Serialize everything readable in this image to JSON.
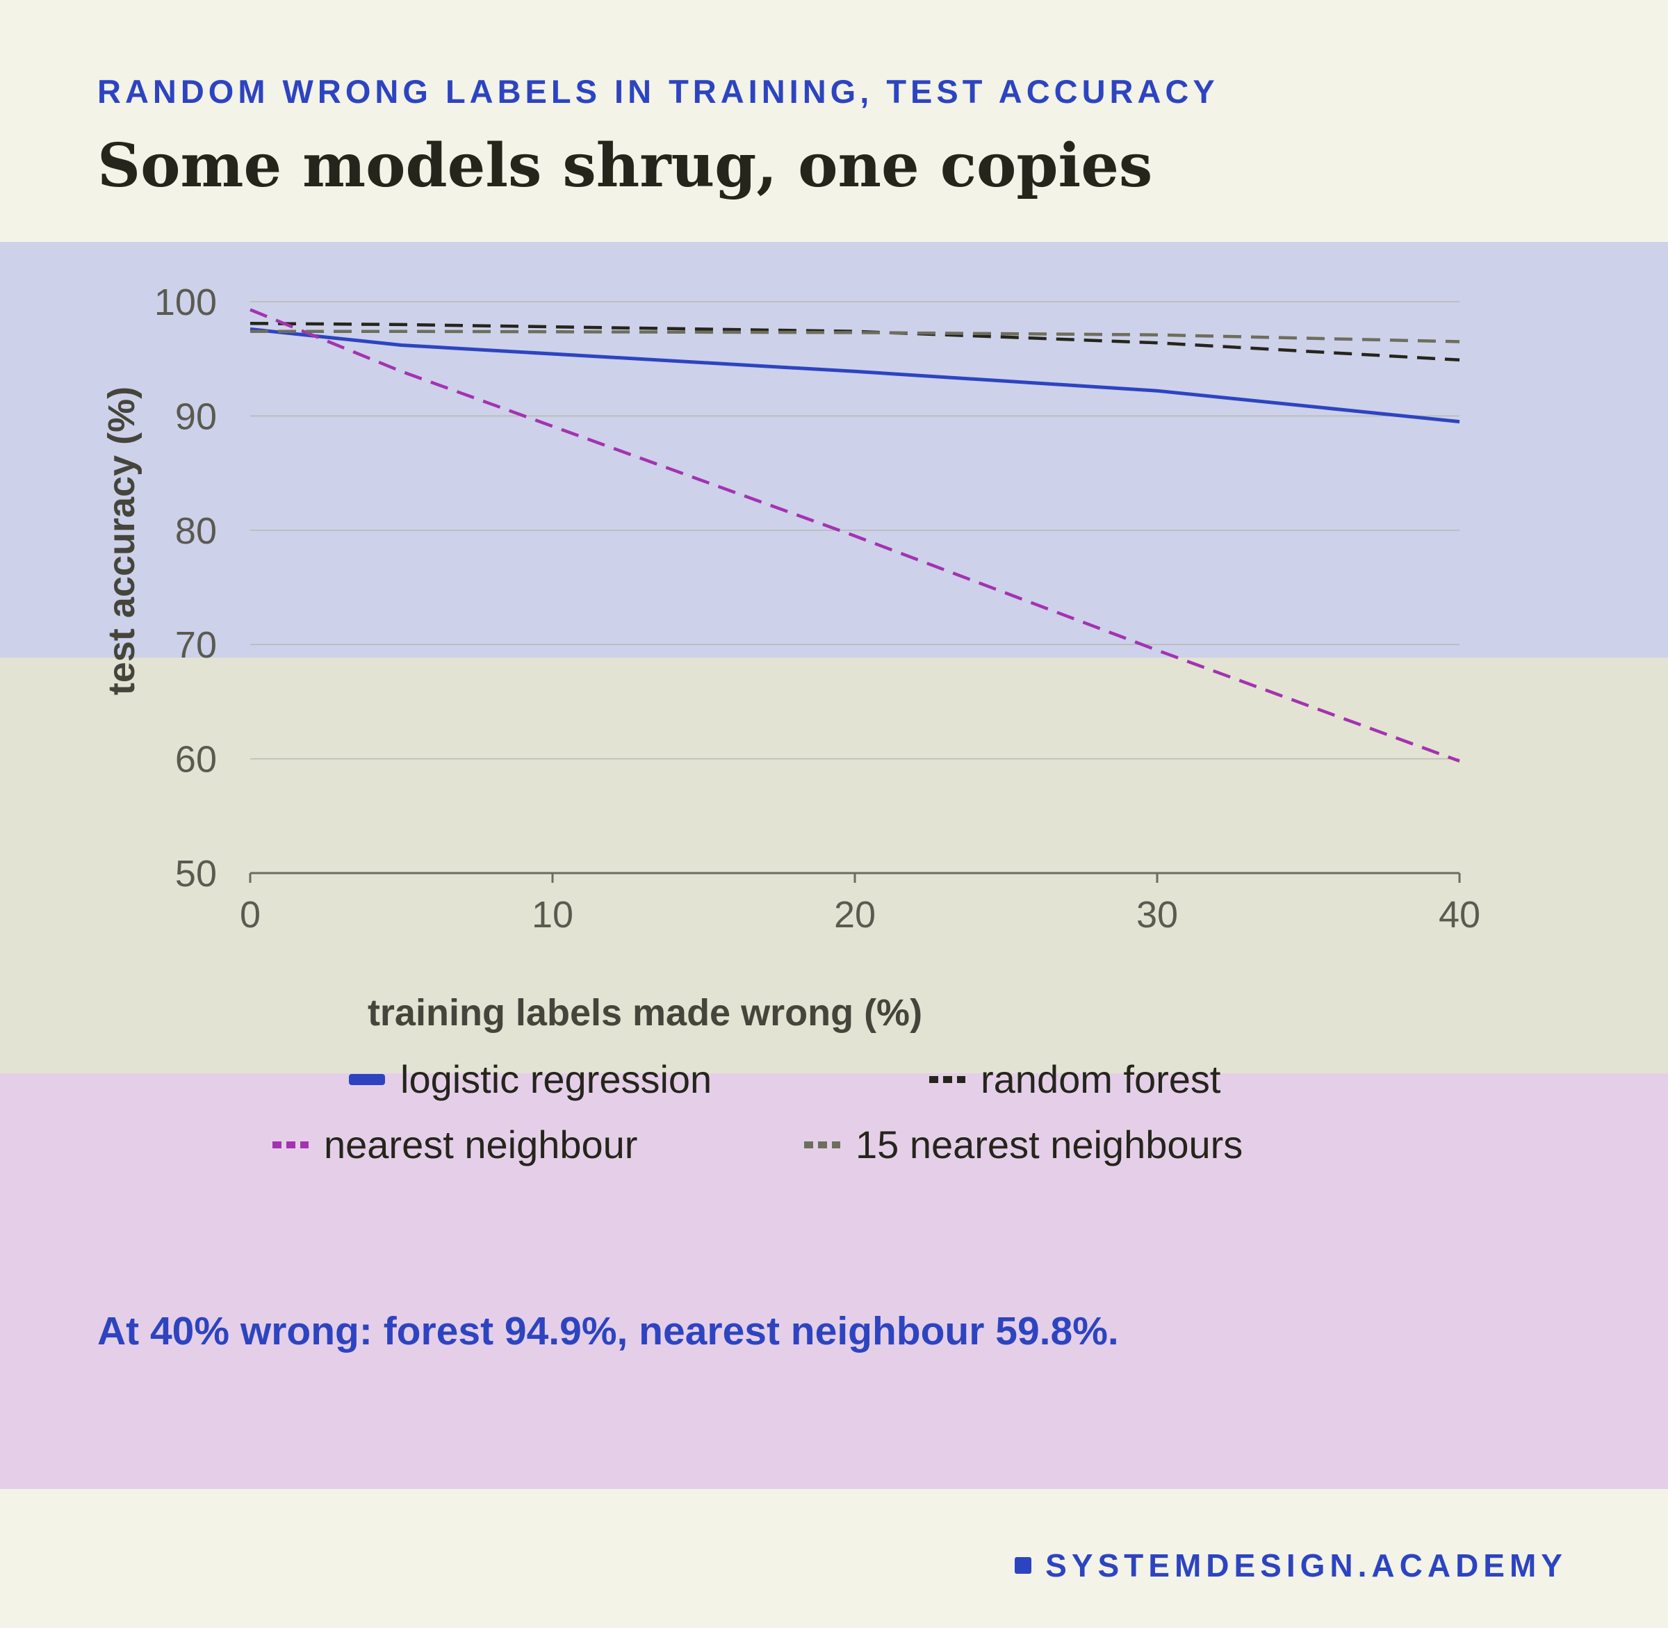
{
  "kicker": "RANDOM WRONG LABELS IN TRAINING, TEST ACCURACY",
  "headline": "Some models shrug, one copies",
  "callout": "At 40% wrong: forest 94.9%, nearest neighbour 59.8%.",
  "brand": "SYSTEMDESIGN.ACADEMY",
  "colors": {
    "accent": "#2d44c1",
    "background": "#f3f3e7",
    "band_top": "#cdd1ea",
    "band_middle": "#e3e3d3",
    "band_bottom": "#e5cfe8"
  },
  "chart_data": {
    "type": "line",
    "title": "",
    "xlabel": "training labels made wrong (%)",
    "ylabel": "test accuracy (%)",
    "x": [
      0,
      5,
      20,
      30,
      40
    ],
    "xlim": [
      0,
      40
    ],
    "ylim": [
      50,
      100
    ],
    "xticks": [
      "0",
      "10",
      "20",
      "30",
      "40"
    ],
    "yticks": [
      "50",
      "60",
      "70",
      "80",
      "90",
      "100"
    ],
    "grid": true,
    "legend_position": "bottom",
    "series": [
      {
        "name": "logistic regression",
        "color": "#2d44c1",
        "style": "solid",
        "values": [
          97.6,
          96.2,
          93.9,
          92.2,
          89.5
        ]
      },
      {
        "name": "random forest",
        "color": "#25251c",
        "style": "dashed",
        "values": [
          98.1,
          98.0,
          97.4,
          96.4,
          94.9
        ]
      },
      {
        "name": "nearest neighbour",
        "color": "#a333b0",
        "style": "dashed",
        "values": [
          99.3,
          93.9,
          79.5,
          69.5,
          59.8
        ]
      },
      {
        "name": "15 nearest neighbours",
        "color": "#6e6e5e",
        "style": "dashed",
        "values": [
          97.4,
          97.4,
          97.3,
          97.1,
          96.5
        ]
      }
    ]
  }
}
